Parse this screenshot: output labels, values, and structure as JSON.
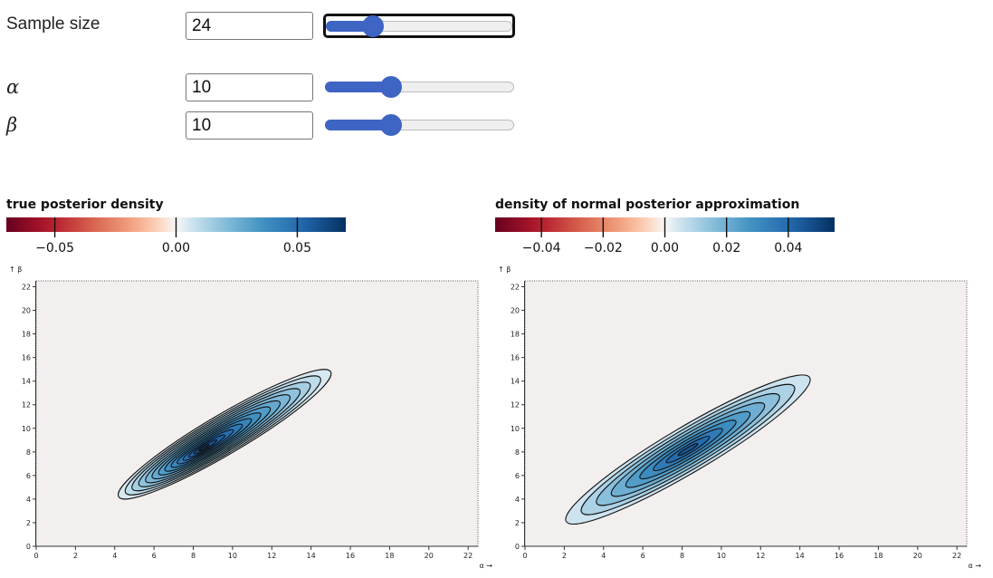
{
  "controls": {
    "sample_size": {
      "label": "Sample size",
      "value": "24",
      "slider_fraction": 0.25
    },
    "alpha": {
      "label": "α",
      "value": "10",
      "slider_fraction": 0.35
    },
    "beta": {
      "label": "β",
      "value": "10",
      "slider_fraction": 0.35
    }
  },
  "colors": {
    "background": "#f2efee",
    "contour_line": "#111111",
    "slider_accent": "#3e64c4"
  },
  "chart_data": [
    {
      "type": "heatmap",
      "subtype": "contour",
      "title": "true posterior density",
      "legend": {
        "type": "colorbar",
        "scheme": "diverging red-white-blue",
        "domain": [
          -0.07,
          0.07
        ],
        "ticks": [
          -0.05,
          0.0,
          0.05
        ],
        "tick_labels": [
          "−0.05",
          "0.00",
          "0.05"
        ]
      },
      "xlabel": "α →",
      "ylabel": "↑ β",
      "xlim": [
        0,
        22.5
      ],
      "ylim": [
        0,
        22.5
      ],
      "xticks": [
        0,
        2,
        4,
        6,
        8,
        10,
        12,
        14,
        16,
        18,
        20,
        22
      ],
      "yticks": [
        0,
        2,
        4,
        6,
        8,
        10,
        12,
        14,
        16,
        18,
        20,
        22
      ],
      "mode": [
        8.5,
        8.3
      ],
      "contour_levels": 14,
      "contour_shape": {
        "tail_lower_left": [
          4.2,
          4.2
        ],
        "tail_upper_right": [
          15,
          14.8
        ]
      },
      "peak_value": 0.068
    },
    {
      "type": "heatmap",
      "subtype": "contour",
      "title": "density of normal posterior approximation",
      "legend": {
        "type": "colorbar",
        "scheme": "diverging red-white-blue",
        "domain": [
          -0.055,
          0.055
        ],
        "ticks": [
          -0.04,
          -0.02,
          0.0,
          0.02,
          0.04
        ],
        "tick_labels": [
          "−0.04",
          "−0.02",
          "0.00",
          "0.02",
          "0.04"
        ]
      },
      "xlabel": "α →",
      "ylabel": "↑ β",
      "xlim": [
        0,
        22.5
      ],
      "ylim": [
        0,
        22.5
      ],
      "xticks": [
        0,
        2,
        4,
        6,
        8,
        10,
        12,
        14,
        16,
        18,
        20,
        22
      ],
      "yticks": [
        0,
        2,
        4,
        6,
        8,
        10,
        12,
        14,
        16,
        18,
        20,
        22
      ],
      "mode": [
        8.3,
        8.2
      ],
      "contour_levels": 9,
      "contour_shape": {
        "tail_lower_left": [
          2.1,
          2.1
        ],
        "tail_upper_right": [
          14.5,
          14.3
        ]
      },
      "peak_value": 0.05
    }
  ]
}
